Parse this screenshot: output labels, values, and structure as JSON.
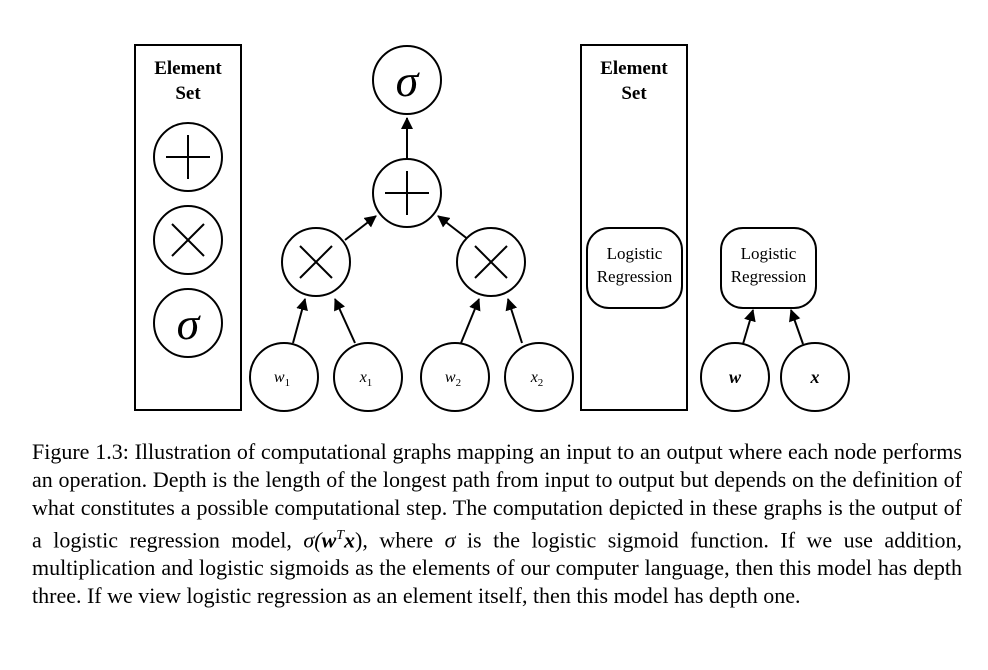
{
  "panel_a": {
    "element_set": {
      "title_line1": "Element",
      "title_line2": "Set"
    },
    "ops": {
      "plus": "+",
      "times": "×",
      "sigma": "σ"
    },
    "graph": {
      "top": "σ",
      "sum": "+",
      "mul_left": "×",
      "mul_right": "×",
      "w1_base": "w",
      "w1_sub": "1",
      "x1_base": "x",
      "x1_sub": "1",
      "w2_base": "w",
      "w2_sub": "2",
      "x2_base": "x",
      "x2_sub": "2"
    }
  },
  "panel_b": {
    "element_set": {
      "title_line1": "Element",
      "title_line2": "Set"
    },
    "lr_box": {
      "line1": "Logistic",
      "line2": "Regression"
    },
    "graph": {
      "lr_node": {
        "line1": "Logistic",
        "line2": "Regression"
      },
      "w": "w",
      "x": "x"
    }
  },
  "caption": {
    "label": "Figure 1.3:",
    "s1": "Illustration of computational graphs mapping an input to an output where each node performs an operation. Depth is the length of the longest path from input to output but depends on the definition of what constitutes a possible computational step. The computation depicted in these graphs is the output of a logistic regression model,",
    "math_sigma": "σ(",
    "math_w": "w",
    "math_T": "T",
    "math_x": "x",
    "math_close": ")",
    "s2": ", where",
    "sigma": "σ",
    "s3": "is the logistic sigmoid function. If we use addition, multiplication and logistic sigmoids as the elements of our computer language, then this model has depth three. If we view logistic regression as an element itself, then this model has depth one."
  }
}
